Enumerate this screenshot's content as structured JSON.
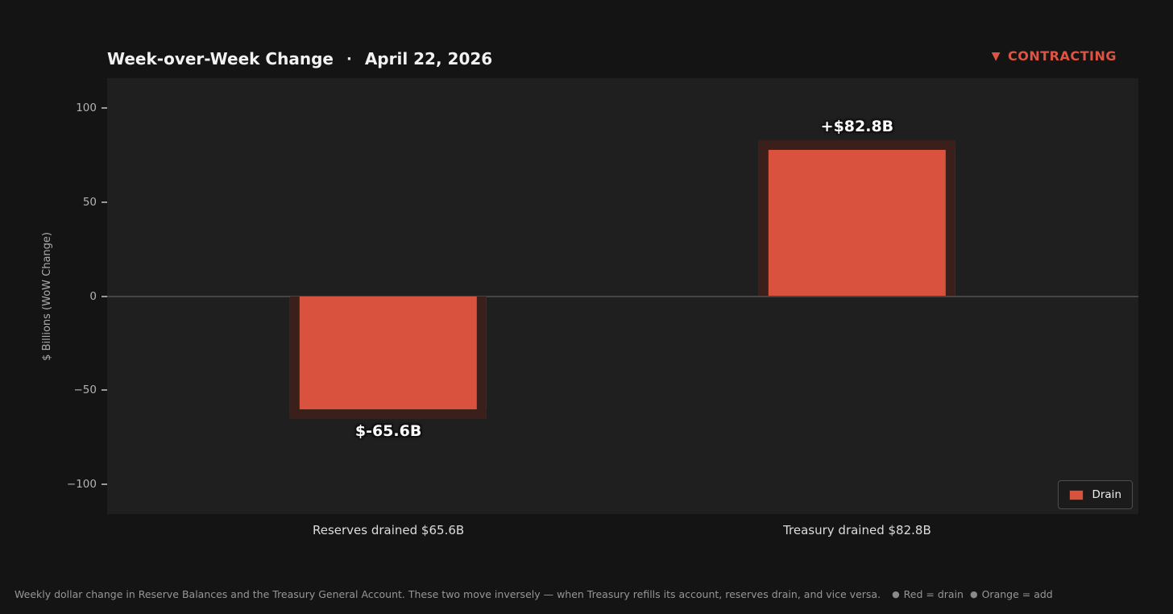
{
  "header": {
    "title": "Week-over-Week Change",
    "separator": "·",
    "date": "April 22, 2026",
    "status": {
      "icon": "▼",
      "label": "CONTRACTING"
    }
  },
  "colors": {
    "accent_red": "#dd5542",
    "bar_fill": "#d9523e",
    "bar_edge": "#3a1f1a",
    "page_bg": "#141414",
    "plot_bg": "#1f1f1f",
    "zero_line": "#454545"
  },
  "chart_data": {
    "type": "bar",
    "categories": [
      "Reserves drained $65.6B",
      "Treasury drained $82.8B"
    ],
    "x": [
      0,
      1
    ],
    "values": [
      -65.6,
      82.8
    ],
    "bar_labels": [
      "$-65.6B",
      "+$82.8B"
    ],
    "series": [
      {
        "name": "Drain",
        "values": [
          -65.6,
          82.8
        ]
      }
    ],
    "title": "Week-over-Week Change · April 22, 2026",
    "xlabel": "",
    "ylabel": "$ Billions (WoW Change)",
    "ylim": [
      -116,
      116
    ],
    "xlim": [
      -0.6,
      1.6
    ],
    "yticks": [
      100,
      50,
      0,
      -50,
      -100
    ],
    "bar_width_units": 0.42,
    "grid": false,
    "legend_position": "lower right",
    "legend_label": "Drain",
    "bar_color": "#d9523e",
    "bar_edge_color": "#3a1f1a"
  },
  "legend": {
    "label": "Drain"
  },
  "footer": {
    "caption": "Weekly dollar change in Reserve Balances and the Treasury General Account. These two move inversely — when Treasury refills its account, reserves drain, and vice versa.",
    "notes": [
      {
        "bullet": "●",
        "label": "Red = drain"
      },
      {
        "bullet": "●",
        "label": "Orange = add"
      }
    ]
  }
}
